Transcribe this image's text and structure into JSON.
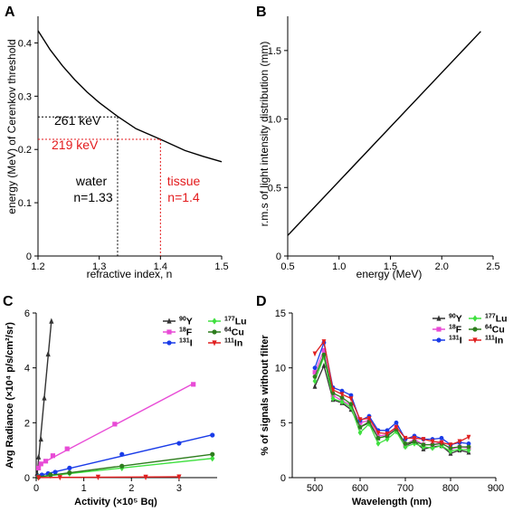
{
  "chart_data": [
    {
      "panel": "A",
      "type": "line",
      "xlabel": "refractive index, n",
      "ylabel": "energy (MeV) of Cerenkov threshold",
      "xlim": [
        1.2,
        1.5
      ],
      "ylim": [
        0,
        0.45
      ],
      "xticks": [
        "1.2",
        "1.3",
        "1.4",
        "1.5"
      ],
      "yticks": [
        "0",
        "0.1",
        "0.2",
        "0.3",
        "0.4"
      ],
      "grid": false,
      "series": [
        {
          "color": "#000000",
          "x": [
            1.2,
            1.22,
            1.24,
            1.26,
            1.28,
            1.3,
            1.33,
            1.36,
            1.4,
            1.44,
            1.47,
            1.5
          ],
          "y": [
            0.423,
            0.387,
            0.357,
            0.331,
            0.308,
            0.288,
            0.262,
            0.239,
            0.219,
            0.198,
            0.187,
            0.177
          ]
        }
      ],
      "annotations": [
        {
          "text": "261 keV",
          "n": 1.33,
          "energy": 0.261,
          "color": "#000000"
        },
        {
          "text": "219 keV",
          "n": 1.4,
          "energy": 0.219,
          "color": "#e31a1c"
        },
        {
          "text": "water",
          "color": "#000000"
        },
        {
          "text": "n=1.33",
          "color": "#000000"
        },
        {
          "text": "tissue",
          "color": "#e31a1c"
        },
        {
          "text": "n=1.4",
          "color": "#e31a1c"
        }
      ]
    },
    {
      "panel": "B",
      "type": "line",
      "xlabel": "energy (MeV)",
      "ylabel": "r.m.s of light intensity distribution (mm)",
      "xlim": [
        0.5,
        2.5
      ],
      "ylim": [
        0,
        1.75
      ],
      "xticks": [
        "0.5",
        "1.0",
        "1.5",
        "2.0",
        "2.5"
      ],
      "yticks": [
        "0",
        "0.5",
        "1.0",
        "1.5"
      ],
      "grid": false,
      "series": [
        {
          "color": "#000000",
          "x": [
            0.5,
            2.38
          ],
          "y": [
            0.15,
            1.64
          ]
        }
      ]
    },
    {
      "panel": "C",
      "type": "scatter",
      "xlabel": "Activity (×10⁵ Bq)",
      "ylabel": "Avg Radiance (×10⁴ p/s/cm²/sr)",
      "xlim": [
        0,
        3.8
      ],
      "ylim": [
        0,
        6
      ],
      "xticks": [
        "0",
        "1",
        "2",
        "3"
      ],
      "yticks": [
        "0",
        "2",
        "4",
        "6"
      ],
      "legend_position": "top-right",
      "series": [
        {
          "name": "Y",
          "sup": "90",
          "color": "#333333",
          "marker": "triangle",
          "x": [
            0.02,
            0.05,
            0.1,
            0.17,
            0.25,
            0.32
          ],
          "y": [
            0.15,
            0.75,
            1.4,
            2.9,
            4.5,
            5.7
          ]
        },
        {
          "name": "F",
          "sup": "18",
          "color": "#e84bd6",
          "marker": "square",
          "x": [
            0.05,
            0.1,
            0.2,
            0.35,
            0.65,
            1.65,
            3.3
          ],
          "y": [
            0.35,
            0.5,
            0.6,
            0.8,
            1.05,
            1.95,
            3.4
          ]
        },
        {
          "name": "I",
          "sup": "131",
          "color": "#1a3ce8",
          "marker": "circle",
          "x": [
            0.05,
            0.12,
            0.25,
            0.4,
            0.7,
            1.8,
            3.0,
            3.7
          ],
          "y": [
            0.05,
            0.1,
            0.15,
            0.2,
            0.35,
            0.85,
            1.25,
            1.55
          ]
        },
        {
          "name": "Lu",
          "sup": "177",
          "color": "#3fe03f",
          "marker": "diamond",
          "x": [
            0.05,
            0.3,
            0.7,
            1.8,
            3.7
          ],
          "y": [
            0.02,
            0.08,
            0.15,
            0.35,
            0.7
          ]
        },
        {
          "name": "Cu",
          "sup": "64",
          "color": "#2e7d1e",
          "marker": "circle",
          "x": [
            0.05,
            0.3,
            0.7,
            1.8,
            3.7
          ],
          "y": [
            0.02,
            0.1,
            0.18,
            0.42,
            0.85
          ]
        },
        {
          "name": "In",
          "sup": "111",
          "color": "#e01f1f",
          "marker": "triangle-down",
          "x": [
            0.05,
            0.5,
            1.3,
            2.3,
            3.0
          ],
          "y": [
            0.0,
            0.01,
            0.02,
            0.02,
            0.03
          ]
        }
      ]
    },
    {
      "panel": "D",
      "type": "line",
      "xlabel": "Wavelength (nm)",
      "ylabel": "% of signals without filter",
      "xlim": [
        450,
        900
      ],
      "ylim": [
        0,
        15
      ],
      "xticks": [
        "500",
        "600",
        "700",
        "800",
        "900"
      ],
      "yticks": [
        "0",
        "5",
        "10",
        "15"
      ],
      "legend_position": "top-right",
      "x": [
        500,
        520,
        540,
        560,
        580,
        600,
        620,
        640,
        660,
        680,
        700,
        720,
        740,
        760,
        780,
        800,
        820,
        840
      ],
      "series": [
        {
          "name": "Y",
          "sup": "90",
          "color": "#333333",
          "marker": "triangle",
          "values": [
            8.3,
            10.2,
            7.1,
            6.8,
            6.2,
            4.6,
            5.0,
            3.6,
            3.8,
            4.4,
            2.9,
            3.3,
            2.6,
            2.8,
            2.9,
            2.2,
            2.5,
            2.3
          ]
        },
        {
          "name": "F",
          "sup": "18",
          "color": "#e84bd6",
          "marker": "square",
          "values": [
            9.6,
            11.6,
            7.5,
            7.0,
            6.6,
            5.0,
            5.2,
            3.8,
            3.9,
            4.5,
            3.0,
            3.5,
            3.0,
            3.0,
            3.2,
            2.6,
            2.8,
            2.7
          ]
        },
        {
          "name": "I",
          "sup": "131",
          "color": "#1a3ce8",
          "marker": "circle",
          "values": [
            10.0,
            12.3,
            8.2,
            7.9,
            7.5,
            5.2,
            5.6,
            4.3,
            4.3,
            5.0,
            3.5,
            3.8,
            3.5,
            3.5,
            3.6,
            3.0,
            3.2,
            3.1
          ]
        },
        {
          "name": "Lu",
          "sup": "177",
          "color": "#3fe03f",
          "marker": "diamond",
          "values": [
            8.8,
            11.0,
            7.2,
            6.9,
            6.4,
            4.1,
            4.9,
            3.1,
            3.5,
            4.2,
            2.8,
            3.1,
            2.8,
            2.7,
            2.9,
            2.4,
            2.6,
            2.5
          ]
        },
        {
          "name": "Cu",
          "sup": "64",
          "color": "#2e7d1e",
          "marker": "circle",
          "values": [
            9.2,
            11.2,
            7.7,
            7.3,
            6.7,
            4.6,
            5.1,
            3.6,
            3.8,
            4.4,
            3.1,
            3.3,
            3.0,
            3.0,
            3.1,
            2.7,
            2.8,
            2.8
          ]
        },
        {
          "name": "In",
          "sup": "111",
          "color": "#e01f1f",
          "marker": "triangle-down",
          "values": [
            11.3,
            12.4,
            8.0,
            7.6,
            7.2,
            5.3,
            5.4,
            4.1,
            4.0,
            4.6,
            3.6,
            3.6,
            3.5,
            3.3,
            3.2,
            3.0,
            3.3,
            3.7
          ]
        }
      ]
    }
  ],
  "panel_labels": [
    "A",
    "B",
    "C",
    "D"
  ]
}
